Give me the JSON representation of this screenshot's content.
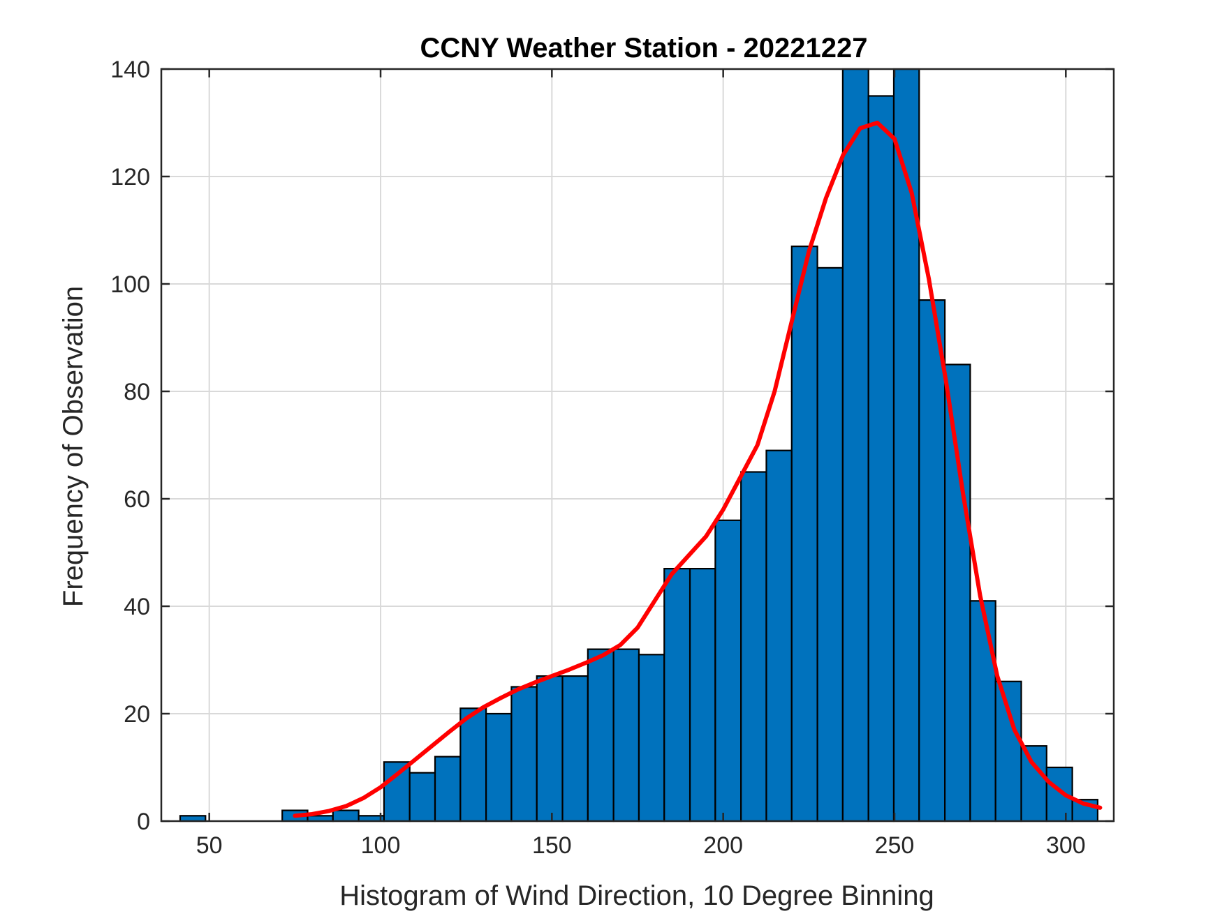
{
  "chart_data": {
    "type": "bar",
    "title": "CCNY Weather Station - 20221227",
    "xlabel": "Histogram of Wind Direction, 10 Degree Binning",
    "ylabel": "Frequency of Observation",
    "xlim": [
      36,
      314
    ],
    "ylim": [
      0,
      140
    ],
    "grid": true,
    "bin_edges": [
      41.5,
      48.9,
      56.4,
      63.8,
      71.3,
      78.7,
      86.1,
      93.6,
      101.0,
      108.5,
      115.9,
      123.3,
      130.8,
      138.2,
      145.6,
      153.1,
      160.5,
      168.0,
      175.4,
      182.8,
      190.3,
      197.7,
      205.2,
      212.6,
      220.0,
      227.5,
      234.9,
      242.4,
      249.8,
      257.2,
      264.7,
      272.1,
      279.5,
      287.0,
      294.4,
      301.9,
      309.3
    ],
    "values": [
      1,
      0,
      0,
      0,
      2,
      1,
      2,
      1,
      11,
      9,
      12,
      21,
      20,
      25,
      27,
      27,
      32,
      32,
      31,
      47,
      47,
      56,
      65,
      69,
      107,
      103,
      140,
      135,
      140,
      97,
      85,
      41,
      26,
      14,
      10,
      4
    ],
    "xticks": [
      50,
      100,
      150,
      200,
      250,
      300
    ],
    "yticks": [
      0,
      20,
      40,
      60,
      80,
      100,
      120,
      140
    ],
    "fit_curve": {
      "x": [
        75,
        80,
        85,
        90,
        95,
        100,
        105,
        110,
        115,
        120,
        125,
        130,
        135,
        140,
        145,
        150,
        155,
        160,
        165,
        170,
        175,
        180,
        185,
        190,
        195,
        200,
        205,
        210,
        215,
        220,
        225,
        230,
        235,
        240,
        245,
        250,
        255,
        260,
        265,
        270,
        275,
        280,
        285,
        290,
        295,
        300,
        305,
        310
      ],
      "y": [
        1,
        1.3,
        1.9,
        2.8,
        4.3,
        6.3,
        8.8,
        11.4,
        14,
        16.6,
        19.1,
        21.2,
        22.9,
        24.5,
        25.8,
        27,
        28.2,
        29.5,
        30.9,
        32.8,
        36,
        41,
        46,
        49.5,
        53,
        58,
        64,
        70,
        80,
        93,
        106,
        116,
        124,
        129,
        130,
        127,
        117,
        101,
        82,
        61,
        42,
        27,
        17,
        11,
        7.3,
        4.8,
        3.3,
        2.5
      ],
      "color": "#FF0000"
    },
    "bar_color": "#0072BD",
    "edge_color": "#000000"
  }
}
